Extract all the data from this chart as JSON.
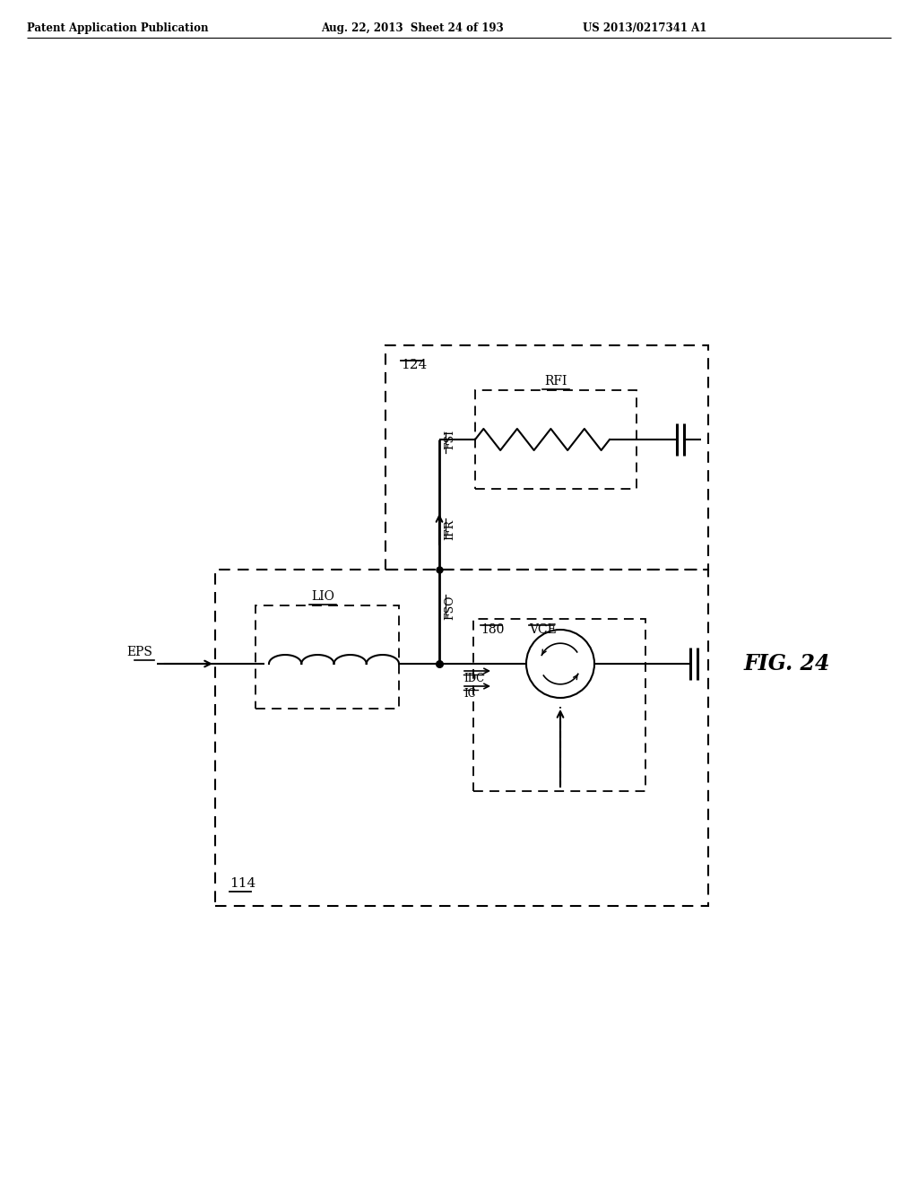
{
  "title_left": "Patent Application Publication",
  "title_mid": "Aug. 22, 2013  Sheet 24 of 193",
  "title_right": "US 2013/0217341 A1",
  "fig_label": "FIG. 24",
  "background": "#ffffff",
  "line_color": "#000000"
}
